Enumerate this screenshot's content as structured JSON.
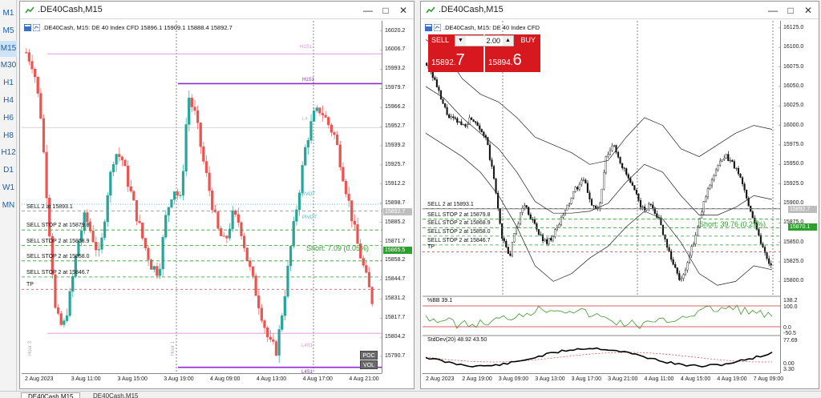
{
  "timeframes": [
    {
      "label": "M1",
      "active": false
    },
    {
      "label": "M5",
      "active": false
    },
    {
      "label": "M15",
      "active": true
    },
    {
      "label": "M30",
      "active": false
    },
    {
      "label": "H1",
      "active": false
    },
    {
      "label": "H4",
      "active": false
    },
    {
      "label": "H6",
      "active": false
    },
    {
      "label": "H8",
      "active": false
    },
    {
      "label": "H12",
      "active": false
    },
    {
      "label": "D1",
      "active": false
    },
    {
      "label": "W1",
      "active": false
    },
    {
      "label": "MN",
      "active": false
    }
  ],
  "left_window": {
    "title": ".DE40Cash,M15",
    "header": ".DE40Cash, M15:  DE 40 Index CFD  15896.1 15909.1 15888.4 15892.7",
    "price_ticks": [
      "16020.2",
      "16006.7",
      "15993.2",
      "15979.7",
      "15966.2",
      "15952.7",
      "15939.2",
      "15925.7",
      "15912.2",
      "15898.7",
      "15885.2",
      "15871.7",
      "15858.2",
      "15844.7",
      "15831.2",
      "15817.7",
      "15804.2",
      "15790.7"
    ],
    "time_labels": [
      "2 Aug 2023",
      "3 Aug 11:00",
      "3 Aug 15:00",
      "3 Aug 19:00",
      "4 Aug 09:00",
      "4 Aug 13:00",
      "4 Aug 17:00",
      "4 Aug 21:00"
    ],
    "order_labels": [
      "SELL 2 at 15893.1",
      "SELL STOP 2 at 15879.8",
      "SELL STOP 2 at 15868.9",
      "SELL STOP 2 at 15858.0",
      "SELL STOP 2 at 15846.7",
      "TP"
    ],
    "bid_price": "15892.7",
    "short_label": "Short: 7.09  (0.05%)",
    "short_price": "15865.5",
    "level_labels": [
      "H1S1",
      "H1S1",
      "L4",
      "PIVOT",
      "PIVOT",
      "L4S1",
      "L4S1"
    ],
    "vertical_labels": [
      "Hour 3",
      "Hour 1"
    ],
    "buttons": {
      "poc": "POC",
      "vol": "VOL"
    },
    "ohlc": {
      "open": 15896.1,
      "high": 15909.1,
      "low": 15888.4,
      "close": 15892.7
    }
  },
  "right_window": {
    "title": ".DE40Cash,M15",
    "header": ".DE40Cash, M15:  DE 40 Index CFD",
    "price_ticks": [
      "16125.0",
      "16100.0",
      "16075.0",
      "16050.0",
      "16025.0",
      "16000.0",
      "15975.0",
      "15950.0",
      "15925.0",
      "15900.0",
      "15875.0",
      "15850.0",
      "15825.0",
      "15800.0"
    ],
    "time_labels": [
      "2 Aug 2023",
      "2 Aug 19:00",
      "3 Aug 09:00",
      "3 Aug 13:00",
      "3 Aug 17:00",
      "3 Aug 21:00",
      "4 Aug 11:00",
      "4 Aug 15:00",
      "4 Aug 19:00",
      "7 Aug 09:00"
    ],
    "order_labels": [
      "SELL 2 at 15893.1",
      "SELL STOP 2 at 15879.8",
      "SELL STOP 2 at 15868.9",
      "SELL STOP 2 at 15858.0",
      "SELL STOP 2 at 15846.7",
      "TP"
    ],
    "bid_price": "15892.7",
    "short_label": "Short: 39.76  (0.25%)",
    "short_price": "15870.1",
    "bb_label": "%BB 39.1",
    "bb_ticks": [
      "138.2",
      "100.0",
      "0.0",
      "-50.5"
    ],
    "std_label": "StdDev(20) 48.92 43.50",
    "std_ticks": [
      "77.69",
      "0.00",
      "3.30"
    ],
    "trade": {
      "sell_label": "SELL",
      "buy_label": "BUY",
      "volume": "2.00",
      "sell_price_small": "15892",
      "sell_price_big": "7",
      "buy_price_small": "15894",
      "buy_price_big": "6"
    }
  },
  "tabs": [
    {
      "label": "DE40Cash,M15",
      "active": true
    },
    {
      "label": "DE40Cash,M15",
      "active": false
    }
  ],
  "colors": {
    "bull": "#26a69a",
    "bear": "#ef5350",
    "trade_red": "#d7181e",
    "pivot_violet": "#8e2ad6",
    "pivot_pink": "#e38be6",
    "order_green": "#2ca02c",
    "tp_red": "#e23b3b",
    "cyan": "#20c4e0"
  }
}
